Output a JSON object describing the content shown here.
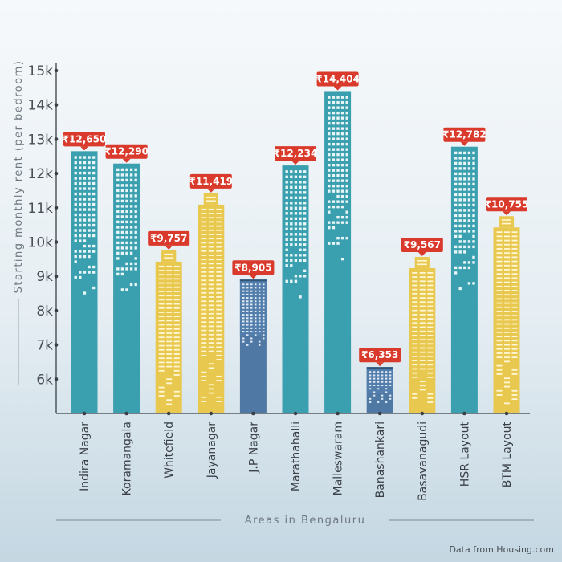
{
  "chart_data": {
    "type": "bar",
    "xlabel": "Areas in Bengaluru",
    "ylabel": "Starting monthly rent (per bedroom)",
    "ylim": [
      5000,
      15000
    ],
    "yticks": [
      6000,
      7000,
      8000,
      9000,
      10000,
      11000,
      12000,
      13000,
      14000,
      15000
    ],
    "ytick_labels": [
      "6k",
      "7k",
      "8k",
      "9k",
      "10k",
      "11k",
      "12k",
      "13k",
      "14k",
      "15k"
    ],
    "categories": [
      "Indira Nagar",
      "Koramangala",
      "Whitefield",
      "Jayanagar",
      "J.P Nagar",
      "Marathahalli",
      "Malleswaram",
      "Banashankari",
      "Basavanagudi",
      "HSR Layout",
      "BTM Layout"
    ],
    "values": [
      12650,
      12290,
      9757,
      11419,
      8905,
      12234,
      14404,
      6353,
      9567,
      12782,
      10755
    ],
    "value_labels": [
      "₹12,650",
      "₹12,290",
      "₹9,757",
      "₹11,419",
      "₹8,905",
      "₹12,234",
      "₹14,404",
      "₹6,353",
      "₹9,567",
      "₹12,782",
      "₹10,755"
    ],
    "bar_colors": [
      "#3a9fae",
      "#3a9fae",
      "#e8c84e",
      "#e8c84e",
      "#4f78a4",
      "#3a9fae",
      "#3a9fae",
      "#4f78a4",
      "#e8c84e",
      "#3a9fae",
      "#e8c84e"
    ],
    "label_color": "#d93a2b",
    "grid": false
  },
  "source_note": "Data from Housing.com"
}
